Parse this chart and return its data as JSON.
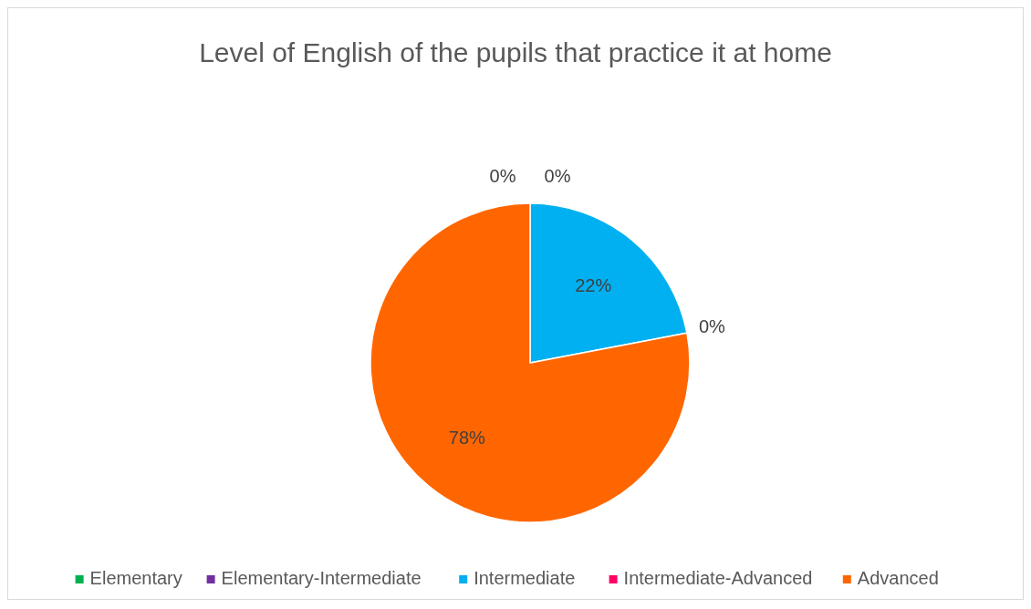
{
  "chart_data": {
    "type": "pie",
    "title": "Level of English of the pupils that practice it at home",
    "categories": [
      "Elementary",
      "Elementary-Intermediate",
      "Intermediate",
      "Intermediate-Advanced",
      "Advanced"
    ],
    "values": [
      0,
      0,
      22,
      0,
      78
    ],
    "colors": [
      "#00b050",
      "#7030a0",
      "#00b0f0",
      "#ff0066",
      "#ff6600"
    ],
    "value_labels": [
      "0%",
      "0%",
      "22%",
      "0%",
      "78%"
    ],
    "legend": "bottom"
  }
}
